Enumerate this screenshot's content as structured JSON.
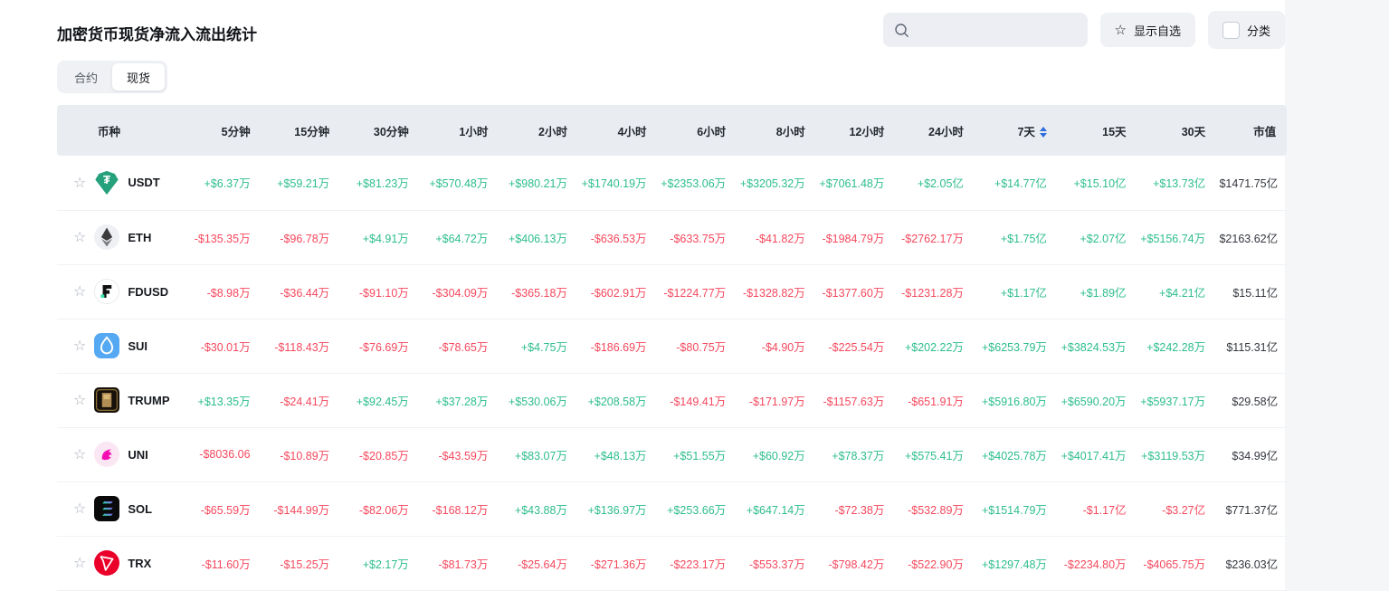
{
  "page": {
    "title": "加密货币现货净流入流出统计"
  },
  "tabs": [
    {
      "label": "合约",
      "active": false
    },
    {
      "label": "现货",
      "active": true
    }
  ],
  "controls": {
    "search_value": "",
    "search_placeholder": "",
    "show_favorites_label": "显示自选",
    "category_label": "分类",
    "category_checked": false
  },
  "colors": {
    "positive": "#2dbd8e",
    "negative": "#f5485d",
    "header_bg": "#e9ecf1",
    "sort_arrow": "#2f6fdb"
  },
  "table": {
    "columns": [
      "币种",
      "5分钟",
      "15分钟",
      "30分钟",
      "1小时",
      "2小时",
      "4小时",
      "6小时",
      "8小时",
      "12小时",
      "24小时",
      "7天",
      "15天",
      "30天",
      "市值"
    ],
    "sort_column_index": 11,
    "rows": [
      {
        "symbol": "USDT",
        "icon": "usdt-icon",
        "values": [
          "+$6.37万",
          "+$59.21万",
          "+$81.23万",
          "+$570.48万",
          "+$980.21万",
          "+$1740.19万",
          "+$2353.06万",
          "+$3205.32万",
          "+$7061.48万",
          "+$2.05亿",
          "+$14.77亿",
          "+$15.10亿",
          "+$13.73亿"
        ],
        "market_cap": "$1471.75亿"
      },
      {
        "symbol": "ETH",
        "icon": "eth-icon",
        "values": [
          "-$135.35万",
          "-$96.78万",
          "+$4.91万",
          "+$64.72万",
          "+$406.13万",
          "-$636.53万",
          "-$633.75万",
          "-$41.82万",
          "-$1984.79万",
          "-$2762.17万",
          "+$1.75亿",
          "+$2.07亿",
          "+$5156.74万"
        ],
        "market_cap": "$2163.62亿"
      },
      {
        "symbol": "FDUSD",
        "icon": "fdusd-icon",
        "values": [
          "-$8.98万",
          "-$36.44万",
          "-$91.10万",
          "-$304.09万",
          "-$365.18万",
          "-$602.91万",
          "-$1224.77万",
          "-$1328.82万",
          "-$1377.60万",
          "-$1231.28万",
          "+$1.17亿",
          "+$1.89亿",
          "+$4.21亿"
        ],
        "market_cap": "$15.11亿"
      },
      {
        "symbol": "SUI",
        "icon": "sui-icon",
        "values": [
          "-$30.01万",
          "-$118.43万",
          "-$76.69万",
          "-$78.65万",
          "+$4.75万",
          "-$186.69万",
          "-$80.75万",
          "-$4.90万",
          "-$225.54万",
          "+$202.22万",
          "+$6253.79万",
          "+$3824.53万",
          "+$242.28万"
        ],
        "market_cap": "$115.31亿"
      },
      {
        "symbol": "TRUMP",
        "icon": "trump-icon",
        "values": [
          "+$13.35万",
          "-$24.41万",
          "+$92.45万",
          "+$37.28万",
          "+$530.06万",
          "+$208.58万",
          "-$149.41万",
          "-$171.97万",
          "-$1157.63万",
          "-$651.91万",
          "+$5916.80万",
          "+$6590.20万",
          "+$5937.17万"
        ],
        "market_cap": "$29.58亿"
      },
      {
        "symbol": "UNI",
        "icon": "uni-icon",
        "values": [
          "-$8036.06",
          "-$10.89万",
          "-$20.85万",
          "-$43.59万",
          "+$83.07万",
          "+$48.13万",
          "+$51.55万",
          "+$60.92万",
          "+$78.37万",
          "+$575.41万",
          "+$4025.78万",
          "+$4017.41万",
          "+$3119.53万"
        ],
        "market_cap": "$34.99亿"
      },
      {
        "symbol": "SOL",
        "icon": "sol-icon",
        "values": [
          "-$65.59万",
          "-$144.99万",
          "-$82.06万",
          "-$168.12万",
          "+$43.88万",
          "+$136.97万",
          "+$253.66万",
          "+$647.14万",
          "-$72.38万",
          "-$532.89万",
          "+$1514.79万",
          "-$1.17亿",
          "-$3.27亿"
        ],
        "market_cap": "$771.37亿"
      },
      {
        "symbol": "TRX",
        "icon": "trx-icon",
        "values": [
          "-$11.60万",
          "-$15.25万",
          "+$2.17万",
          "-$81.73万",
          "-$25.64万",
          "-$271.36万",
          "-$223.17万",
          "-$553.37万",
          "-$798.42万",
          "-$522.90万",
          "+$1297.48万",
          "-$2234.80万",
          "-$4065.75万"
        ],
        "market_cap": "$236.03亿"
      }
    ]
  }
}
